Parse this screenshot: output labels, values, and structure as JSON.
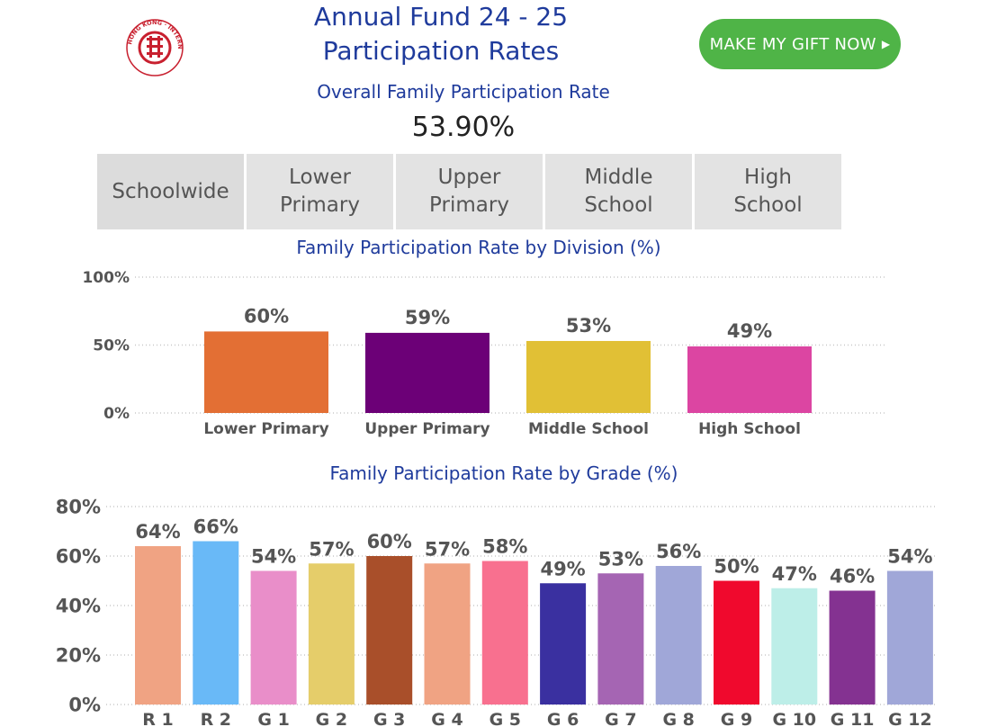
{
  "header": {
    "title_line1": "Annual Fund 24 - 25",
    "title_line2": "Participation Rates",
    "gift_button_label": "MAKE MY GIFT NOW"
  },
  "logo": {
    "text": "HONG KONG · INTERNATIONAL · SCHOOL",
    "color": "#c8202f"
  },
  "overall": {
    "label": "Overall Family Participation Rate",
    "value": "53.90%"
  },
  "tabs": [
    {
      "label": "Schoolwide"
    },
    {
      "label": "Lower\nPrimary"
    },
    {
      "label": "Upper\nPrimary"
    },
    {
      "label": "Middle\nSchool"
    },
    {
      "label": "High\nSchool"
    }
  ],
  "colors": {
    "title": "#1f3b9c",
    "button": "#4fb447",
    "tab_bg": "#e3e3e3"
  },
  "chart_data": [
    {
      "type": "bar",
      "title": "Family Participation Rate by Division (%)",
      "ylim": [
        0,
        100
      ],
      "yticks": [
        "0%",
        "50%",
        "100%"
      ],
      "grid": true,
      "categories": [
        "Lower Primary",
        "Upper Primary",
        "Middle School",
        "High School"
      ],
      "values": [
        60,
        59,
        53,
        49
      ],
      "labels": [
        "60%",
        "59%",
        "53%",
        "49%"
      ],
      "colors": [
        "#e36f34",
        "#6c0077",
        "#e1c035",
        "#dc45a2"
      ]
    },
    {
      "type": "bar",
      "title": "Family Participation Rate by Grade (%)",
      "ylim": [
        0,
        80
      ],
      "yticks": [
        "0%",
        "20%",
        "40%",
        "60%",
        "80%"
      ],
      "grid": true,
      "categories": [
        "R 1",
        "R 2",
        "G 1",
        "G 2",
        "G 3",
        "G 4",
        "G 5",
        "G 6",
        "G 7",
        "G 8",
        "G 9",
        "G 10",
        "G 11",
        "G 12"
      ],
      "values": [
        64,
        66,
        54,
        57,
        60,
        57,
        58,
        49,
        53,
        56,
        50,
        47,
        46,
        54
      ],
      "labels": [
        "64%",
        "66%",
        "54%",
        "57%",
        "60%",
        "57%",
        "58%",
        "49%",
        "53%",
        "56%",
        "50%",
        "47%",
        "46%",
        "54%"
      ],
      "colors": [
        "#f0a383",
        "#69b9f7",
        "#e98ec9",
        "#e5cd6a",
        "#a94f2a",
        "#f0a383",
        "#f8708f",
        "#3a30a0",
        "#a565b3",
        "#a0a7d8",
        "#f0092d",
        "#bdeee8",
        "#843291",
        "#a0a7d8"
      ]
    }
  ]
}
